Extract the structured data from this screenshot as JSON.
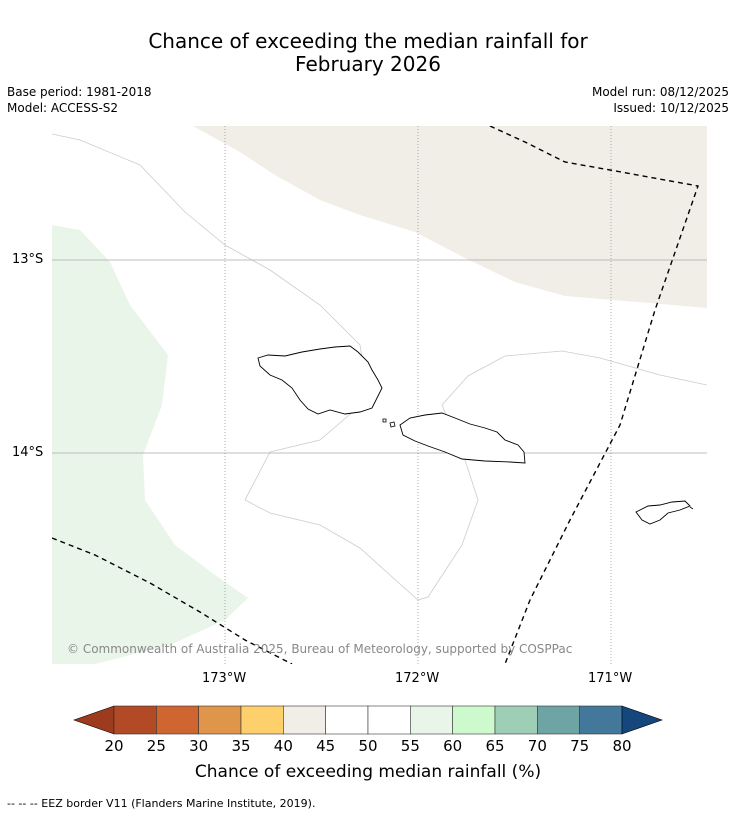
{
  "title_line1": "Chance of exceeding the median rainfall for",
  "title_line2": "February 2026",
  "base_period": "Base period: 1981-2018",
  "model": "Model: ACCESS-S2",
  "model_run": "Model run: 08/12/2025",
  "issued": "Issued: 10/12/2025",
  "lat_labels": [
    "13°S",
    "14°S"
  ],
  "lon_labels": [
    "173°W",
    "172°W",
    "171°W"
  ],
  "copyright": "© Commonwealth of Australia 2025, Bureau of Meteorology, supported by COSPPac",
  "colorbar": {
    "ticks": [
      "20",
      "25",
      "30",
      "35",
      "40",
      "45",
      "50",
      "55",
      "60",
      "65",
      "70",
      "75",
      "80"
    ],
    "colors": [
      "#b34a26",
      "#cf6632",
      "#e0964a",
      "#fdd06b",
      "#f1ede7",
      "#ffffff",
      "#ffffff",
      "#e9f5e8",
      "#ccfacc",
      "#9ecfb6",
      "#6ea4a4",
      "#43789a"
    ],
    "under_color": "#9e3a1e",
    "over_color": "#15477c",
    "title": "Chance of exceeding median rainfall (%)"
  },
  "footnote": "--  --  -- EEZ border V11 (Flanders Marine Institute, 2019)."
}
